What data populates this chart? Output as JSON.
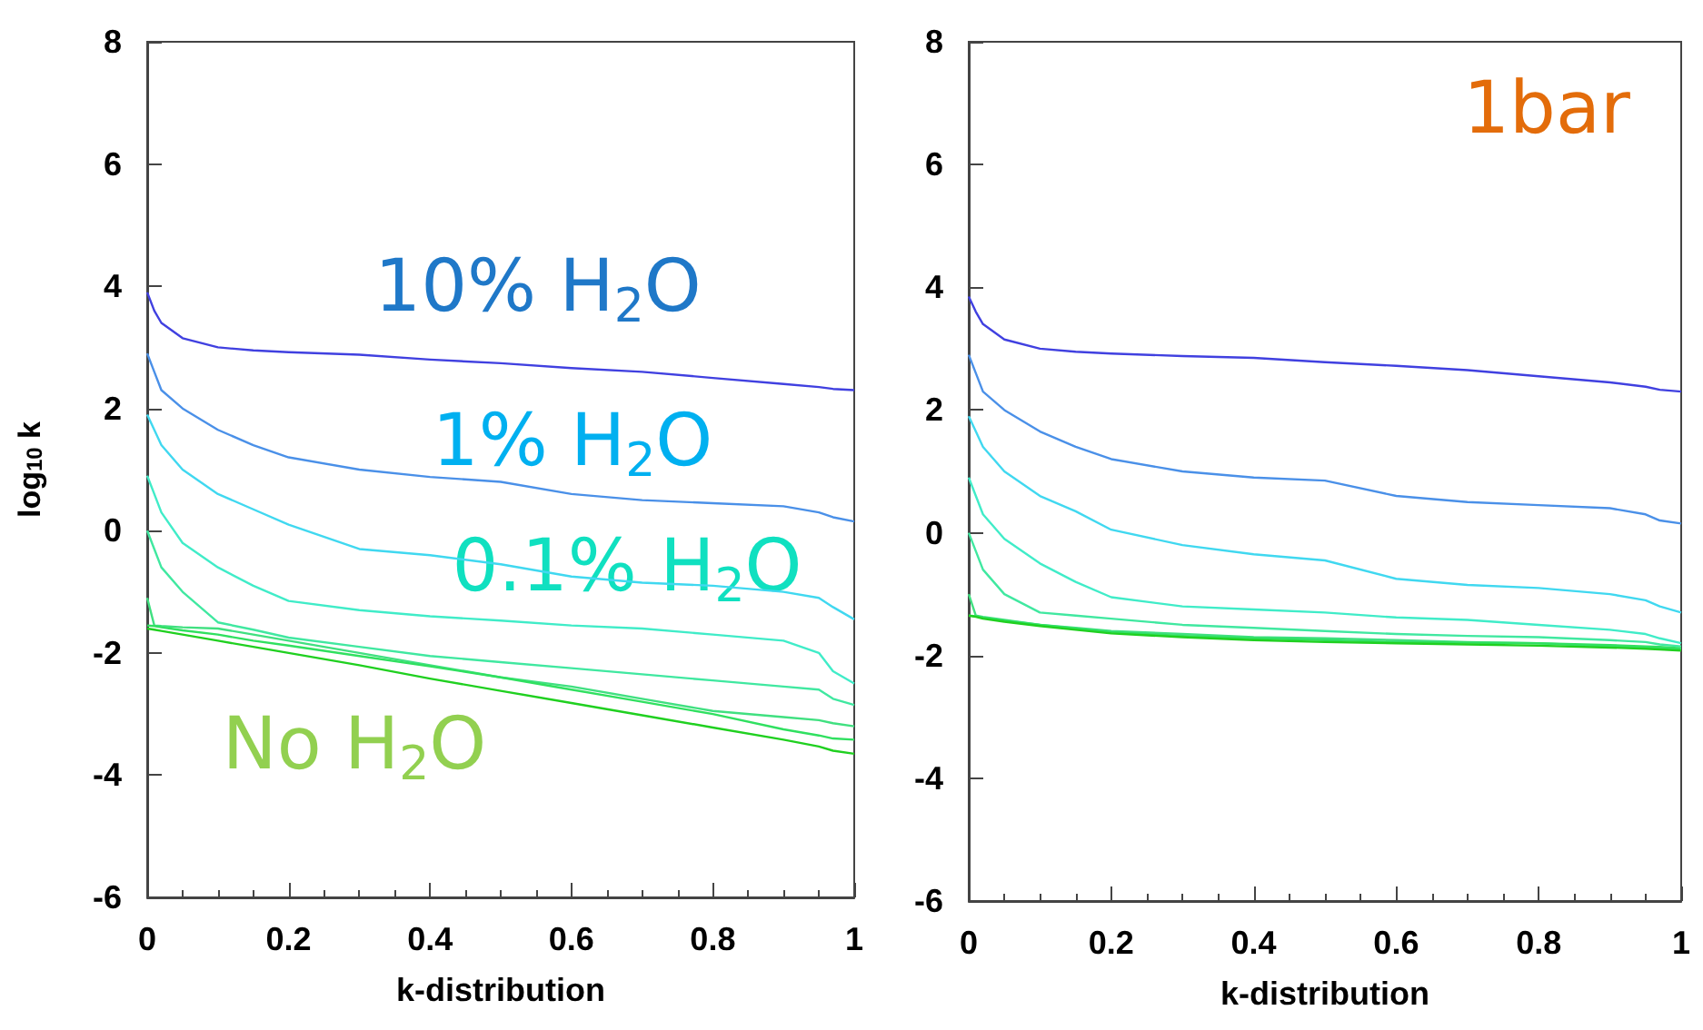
{
  "chart_data": [
    {
      "type": "line",
      "xlabel": "k-distribution",
      "ylabel": "log$_{10}$ k",
      "x": [
        0,
        0.01,
        0.02,
        0.05,
        0.1,
        0.15,
        0.2,
        0.3,
        0.4,
        0.5,
        0.6,
        0.7,
        0.8,
        0.9,
        0.95,
        0.97,
        1
      ],
      "xlim": [
        0,
        1
      ],
      "xticks": [
        0,
        0.2,
        0.4,
        0.6,
        0.8,
        1
      ],
      "ylim": [
        -6,
        8
      ],
      "yticks": [
        -6,
        -4,
        -2,
        0,
        2,
        4,
        6,
        8
      ],
      "grid": false,
      "marker": "none",
      "line_style": "solid",
      "series": [
        {
          "color": "#4040e0",
          "values": [
            3.9,
            3.6,
            3.4,
            3.15,
            3.0,
            2.95,
            2.92,
            2.88,
            2.8,
            2.74,
            2.66,
            2.6,
            2.5,
            2.4,
            2.35,
            2.32,
            2.3
          ]
        },
        {
          "color": "#4a90e8",
          "values": [
            2.9,
            2.6,
            2.3,
            2.0,
            1.65,
            1.4,
            1.2,
            1.0,
            0.88,
            0.8,
            0.6,
            0.5,
            0.45,
            0.4,
            0.3,
            0.22,
            0.15
          ]
        },
        {
          "color": "#40d8f0",
          "values": [
            1.9,
            1.65,
            1.4,
            1.0,
            0.6,
            0.35,
            0.1,
            -0.3,
            -0.4,
            -0.55,
            -0.75,
            -0.85,
            -0.9,
            -1.0,
            -1.1,
            -1.25,
            -1.45
          ]
        },
        {
          "color": "#40ecc8",
          "values": [
            0.9,
            0.6,
            0.3,
            -0.2,
            -0.6,
            -0.9,
            -1.15,
            -1.3,
            -1.4,
            -1.47,
            -1.55,
            -1.6,
            -1.7,
            -1.8,
            -2.0,
            -2.3,
            -2.5
          ]
        },
        {
          "color": "#40e8a0",
          "values": [
            0,
            -0.3,
            -0.6,
            -1.0,
            -1.5,
            -1.62,
            -1.75,
            -1.9,
            -2.05,
            -2.15,
            -2.25,
            -2.35,
            -2.45,
            -2.55,
            -2.6,
            -2.75,
            -2.85
          ]
        },
        {
          "color": "#40e080",
          "values": [
            -1.1,
            -1.55,
            -1.56,
            -1.58,
            -1.6,
            -1.7,
            -1.8,
            -2.0,
            -2.2,
            -2.4,
            -2.55,
            -2.75,
            -2.95,
            -3.05,
            -3.1,
            -3.15,
            -3.2
          ]
        },
        {
          "color": "#30e060",
          "values": [
            -1.55,
            -1.56,
            -1.58,
            -1.63,
            -1.7,
            -1.8,
            -1.88,
            -2.05,
            -2.22,
            -2.4,
            -2.6,
            -2.8,
            -3.0,
            -3.25,
            -3.35,
            -3.4,
            -3.42
          ]
        },
        {
          "color": "#20d020",
          "values": [
            -1.6,
            -1.62,
            -1.64,
            -1.7,
            -1.8,
            -1.9,
            -2.0,
            -2.2,
            -2.42,
            -2.62,
            -2.82,
            -3.02,
            -3.22,
            -3.42,
            -3.53,
            -3.6,
            -3.65
          ]
        }
      ],
      "annotations": [
        "10% H$_{2}$O",
        "1% H$_{2}$O",
        "0.1% H$_{2}$O",
        "No H$_{2}$O"
      ]
    },
    {
      "type": "line",
      "xlabel": "k-distribution",
      "x": [
        0,
        0.01,
        0.02,
        0.05,
        0.1,
        0.15,
        0.2,
        0.3,
        0.4,
        0.5,
        0.6,
        0.7,
        0.8,
        0.9,
        0.95,
        0.97,
        1
      ],
      "xlim": [
        0,
        1
      ],
      "xticks": [
        0,
        0.2,
        0.4,
        0.6,
        0.8,
        1
      ],
      "ylim": [
        -6,
        8
      ],
      "yticks": [
        -6,
        -4,
        -2,
        0,
        2,
        4,
        6,
        8
      ],
      "grid": false,
      "marker": "none",
      "line_style": "solid",
      "series": [
        {
          "color": "#4040e0",
          "values": [
            3.85,
            3.6,
            3.4,
            3.15,
            3.0,
            2.95,
            2.92,
            2.88,
            2.85,
            2.78,
            2.72,
            2.65,
            2.55,
            2.45,
            2.38,
            2.33,
            2.3
          ]
        },
        {
          "color": "#4a90e8",
          "values": [
            2.9,
            2.6,
            2.3,
            2.0,
            1.65,
            1.4,
            1.2,
            1.0,
            0.9,
            0.85,
            0.6,
            0.5,
            0.45,
            0.4,
            0.3,
            0.2,
            0.15
          ]
        },
        {
          "color": "#40d8f0",
          "values": [
            1.9,
            1.65,
            1.4,
            1.0,
            0.6,
            0.35,
            0.05,
            -0.2,
            -0.35,
            -0.45,
            -0.75,
            -0.85,
            -0.9,
            -1.0,
            -1.1,
            -1.2,
            -1.3
          ]
        },
        {
          "color": "#40ecc8",
          "values": [
            0.9,
            0.6,
            0.3,
            -0.1,
            -0.5,
            -0.8,
            -1.05,
            -1.2,
            -1.25,
            -1.3,
            -1.38,
            -1.42,
            -1.5,
            -1.58,
            -1.65,
            -1.72,
            -1.8
          ]
        },
        {
          "color": "#40e8a0",
          "values": [
            0,
            -0.3,
            -0.6,
            -1.0,
            -1.3,
            -1.35,
            -1.4,
            -1.5,
            -1.55,
            -1.6,
            -1.65,
            -1.68,
            -1.7,
            -1.75,
            -1.78,
            -1.82,
            -1.85
          ]
        },
        {
          "color": "#40e080",
          "values": [
            -1.0,
            -1.35,
            -1.37,
            -1.42,
            -1.5,
            -1.55,
            -1.6,
            -1.65,
            -1.7,
            -1.72,
            -1.75,
            -1.78,
            -1.8,
            -1.85,
            -1.87,
            -1.88,
            -1.9
          ]
        },
        {
          "color": "#30e060",
          "values": [
            -1.35,
            -1.36,
            -1.38,
            -1.43,
            -1.5,
            -1.56,
            -1.62,
            -1.68,
            -1.72,
            -1.75,
            -1.78,
            -1.79,
            -1.8,
            -1.83,
            -1.85,
            -1.86,
            -1.88
          ]
        },
        {
          "color": "#20d020",
          "values": [
            -1.35,
            -1.37,
            -1.4,
            -1.45,
            -1.52,
            -1.58,
            -1.64,
            -1.7,
            -1.75,
            -1.78,
            -1.8,
            -1.82,
            -1.84,
            -1.87,
            -1.89,
            -1.9,
            -1.92
          ]
        }
      ],
      "annotations": [
        "1bar"
      ]
    }
  ]
}
